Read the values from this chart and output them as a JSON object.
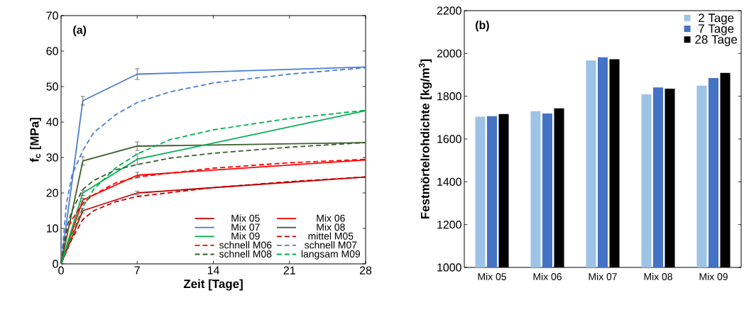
{
  "chart_data": [
    {
      "type": "line",
      "xlabel": "Zeit [Tage]",
      "ylabel": "f$_{c}$ [MPa]",
      "annotations": [
        "(a)"
      ],
      "xlim": [
        0,
        28
      ],
      "ylim": [
        0,
        70
      ],
      "xticks": [
        0,
        7,
        14,
        21,
        28
      ],
      "yticks": [
        0,
        10,
        20,
        30,
        40,
        50,
        60,
        70
      ],
      "legend": "bottom right",
      "series": [
        {
          "name": "Mix 05",
          "color": "#c00000",
          "line_style": "solid",
          "x": [
            0,
            2,
            7,
            28
          ],
          "values": [
            0,
            15,
            20,
            24.5
          ],
          "errors": [
            null,
            0.7,
            0.5,
            null
          ]
        },
        {
          "name": "Mix 06",
          "color": "#ff0000",
          "line_style": "solid",
          "x": [
            0,
            2,
            7,
            28
          ],
          "values": [
            0,
            18,
            25,
            29.3
          ],
          "errors": [
            null,
            0.5,
            0.8,
            null
          ]
        },
        {
          "name": "Mix 07",
          "color": "#4a7ed6",
          "line_style": "solid",
          "x": [
            0,
            2,
            7,
            28
          ],
          "values": [
            0,
            46,
            53.5,
            55.5
          ],
          "errors": [
            null,
            1.2,
            1.5,
            null
          ]
        },
        {
          "name": "Mix 08",
          "color": "#3b5e2b",
          "line_style": "solid",
          "x": [
            0,
            2,
            7,
            28
          ],
          "values": [
            0,
            29,
            33.2,
            34.2
          ],
          "errors": [
            null,
            1.2,
            1.2,
            null
          ]
        },
        {
          "name": "Mix 09",
          "color": "#00b050",
          "line_style": "solid",
          "x": [
            0,
            2,
            7,
            28
          ],
          "values": [
            0,
            20,
            29.5,
            43.2
          ],
          "errors": [
            null,
            0.7,
            1.5,
            null
          ]
        },
        {
          "name": "mittel M05",
          "color": "#c00000",
          "line_style": "dashed",
          "x": [
            0,
            1,
            2,
            3,
            5,
            7,
            14,
            21,
            28
          ],
          "values": [
            0,
            7,
            12.5,
            15,
            17.5,
            19,
            21.5,
            23.2,
            24.5
          ]
        },
        {
          "name": "schnell M06",
          "color": "#ff0000",
          "line_style": "dashed",
          "x": [
            0,
            0.5,
            1,
            2,
            3,
            5,
            7,
            14,
            21,
            28
          ],
          "values": [
            0,
            9,
            12.5,
            17,
            19.5,
            22.8,
            24.5,
            27,
            28.5,
            29.5
          ]
        },
        {
          "name": "schnell M07",
          "color": "#4a7ed6",
          "line_style": "dashed",
          "x": [
            0,
            0.5,
            1,
            2,
            3,
            5,
            7,
            10,
            14,
            21,
            28
          ],
          "values": [
            0,
            17,
            25,
            32,
            37,
            42,
            45.5,
            48.5,
            51,
            53.5,
            55.3
          ]
        },
        {
          "name": "schnell M08",
          "color": "#3b5e2b",
          "line_style": "dashed",
          "x": [
            0,
            0.5,
            1,
            2,
            3,
            5,
            7,
            10,
            14,
            21,
            28
          ],
          "values": [
            0,
            10,
            15,
            21,
            23.5,
            26.5,
            28,
            29.8,
            31.2,
            32.9,
            34.2
          ]
        },
        {
          "name": "langsam M09",
          "color": "#00b050",
          "line_style": "dashed",
          "x": [
            0,
            1,
            2,
            3,
            5,
            7,
            10,
            14,
            21,
            28
          ],
          "values": [
            0,
            8,
            16,
            21,
            27,
            31,
            35,
            37.8,
            41,
            43.3
          ]
        }
      ]
    },
    {
      "type": "bar",
      "ylabel": "Festmörtelrohdichte [kg/m$^{3}$]",
      "annotations": [
        "(b)"
      ],
      "categories": [
        "Mix 05",
        "Mix 06",
        "Mix 07",
        "Mix 08",
        "Mix 09"
      ],
      "ylim": [
        1000,
        2200
      ],
      "yticks": [
        1000,
        1200,
        1400,
        1600,
        1800,
        2000,
        2200
      ],
      "legend": "top right",
      "series": [
        {
          "name": "2 Tage",
          "color": "#9dc3e6",
          "values": [
            1704,
            1730,
            1967,
            1809,
            1849
          ]
        },
        {
          "name": "7 Tage",
          "color": "#4472c4",
          "values": [
            1707,
            1719,
            1982,
            1841,
            1885
          ]
        },
        {
          "name": "28 Tage",
          "color": "#000000",
          "values": [
            1717,
            1743,
            1973,
            1835,
            1909
          ]
        }
      ]
    }
  ]
}
